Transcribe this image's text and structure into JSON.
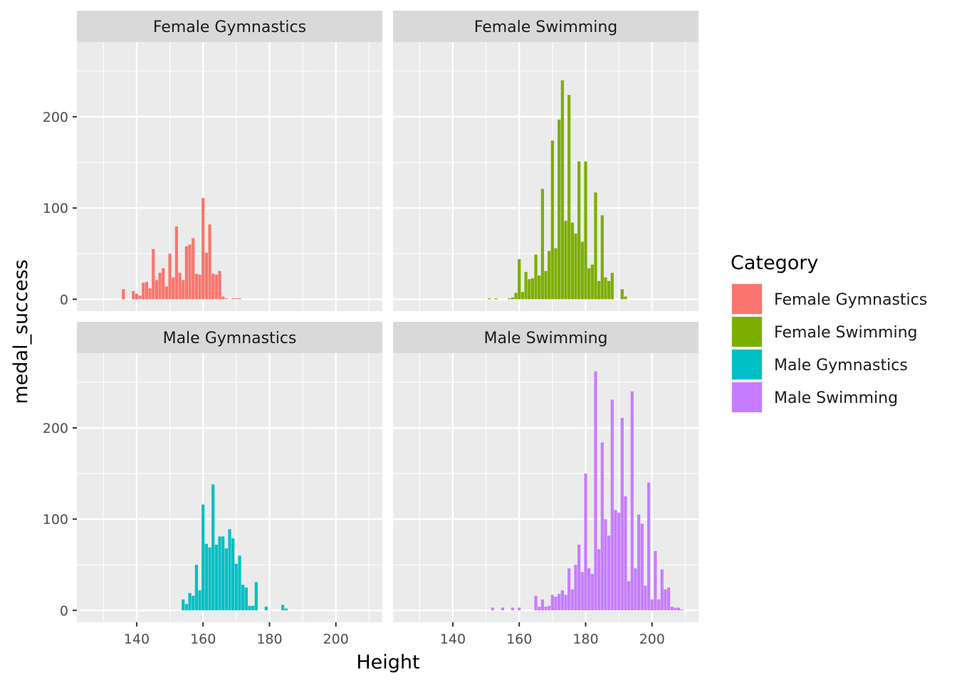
{
  "chart_data": {
    "type": "bar",
    "xlabel": "Height",
    "ylabel": "medal_success",
    "xlim": [
      122,
      214
    ],
    "ylim": [
      -13,
      282
    ],
    "x_ticks": [
      140,
      160,
      180,
      200
    ],
    "y_ticks": [
      0,
      100,
      200
    ],
    "x_tick_labels": [
      "140",
      "160",
      "180",
      "200"
    ],
    "y_tick_labels": [
      "0",
      "100",
      "200"
    ],
    "grid": true,
    "facets": [
      "Female Gymnastics",
      "Female Swimming",
      "Male Gymnastics",
      "Male Swimming"
    ],
    "legend": {
      "title": "Category",
      "position": "right",
      "entries": [
        {
          "label": "Female Gymnastics",
          "color": "#F8766D"
        },
        {
          "label": "Female Swimming",
          "color": "#7CAE00"
        },
        {
          "label": "Male Gymnastics",
          "color": "#00BFC4"
        },
        {
          "label": "Male Swimming",
          "color": "#C77CFF"
        }
      ]
    },
    "series": [
      {
        "name": "Female Gymnastics",
        "color": "#F8766D",
        "points": [
          [
            136,
            11
          ],
          [
            138,
            0
          ],
          [
            139,
            9
          ],
          [
            140,
            6
          ],
          [
            141,
            4
          ],
          [
            142,
            18
          ],
          [
            143,
            19
          ],
          [
            144,
            12
          ],
          [
            145,
            55
          ],
          [
            146,
            21
          ],
          [
            147,
            29
          ],
          [
            148,
            34
          ],
          [
            149,
            14
          ],
          [
            150,
            50
          ],
          [
            151,
            24
          ],
          [
            152,
            80
          ],
          [
            153,
            29
          ],
          [
            154,
            21
          ],
          [
            155,
            58
          ],
          [
            156,
            60
          ],
          [
            157,
            67
          ],
          [
            158,
            28
          ],
          [
            159,
            27
          ],
          [
            160,
            111
          ],
          [
            161,
            51
          ],
          [
            162,
            82
          ],
          [
            163,
            28
          ],
          [
            164,
            27
          ],
          [
            165,
            31
          ],
          [
            166,
            3
          ],
          [
            167,
            1
          ],
          [
            168,
            0
          ],
          [
            169,
            1
          ],
          [
            170,
            1
          ],
          [
            171,
            1
          ]
        ]
      },
      {
        "name": "Female Swimming",
        "color": "#7CAE00",
        "points": [
          [
            151,
            1
          ],
          [
            153,
            1
          ],
          [
            157,
            1
          ],
          [
            158,
            2
          ],
          [
            159,
            7
          ],
          [
            160,
            44
          ],
          [
            161,
            8
          ],
          [
            162,
            30
          ],
          [
            163,
            22
          ],
          [
            164,
            23
          ],
          [
            165,
            49
          ],
          [
            166,
            26
          ],
          [
            167,
            121
          ],
          [
            168,
            31
          ],
          [
            169,
            53
          ],
          [
            170,
            174
          ],
          [
            171,
            56
          ],
          [
            172,
            197
          ],
          [
            173,
            240
          ],
          [
            174,
            86
          ],
          [
            175,
            224
          ],
          [
            176,
            84
          ],
          [
            177,
            72
          ],
          [
            178,
            151
          ],
          [
            179,
            63
          ],
          [
            180,
            151
          ],
          [
            181,
            34
          ],
          [
            182,
            38
          ],
          [
            183,
            117
          ],
          [
            184,
            20
          ],
          [
            185,
            92
          ],
          [
            186,
            24
          ],
          [
            187,
            20
          ],
          [
            188,
            29
          ],
          [
            189,
            0
          ],
          [
            190,
            0
          ],
          [
            191,
            11
          ],
          [
            192,
            3
          ]
        ]
      },
      {
        "name": "Male Gymnastics",
        "color": "#00BFC4",
        "points": [
          [
            154,
            12
          ],
          [
            155,
            7
          ],
          [
            156,
            19
          ],
          [
            157,
            16
          ],
          [
            158,
            50
          ],
          [
            159,
            22
          ],
          [
            160,
            116
          ],
          [
            161,
            73
          ],
          [
            162,
            69
          ],
          [
            163,
            138
          ],
          [
            164,
            72
          ],
          [
            165,
            81
          ],
          [
            166,
            81
          ],
          [
            167,
            68
          ],
          [
            168,
            89
          ],
          [
            169,
            79
          ],
          [
            170,
            51
          ],
          [
            171,
            60
          ],
          [
            172,
            28
          ],
          [
            173,
            25
          ],
          [
            174,
            5
          ],
          [
            175,
            5
          ],
          [
            176,
            31
          ],
          [
            177,
            0
          ],
          [
            178,
            0
          ],
          [
            179,
            4
          ],
          [
            180,
            0
          ],
          [
            181,
            0
          ],
          [
            182,
            0
          ],
          [
            183,
            0
          ],
          [
            184,
            6
          ],
          [
            185,
            2
          ]
        ]
      },
      {
        "name": "Male Swimming",
        "color": "#C77CFF",
        "points": [
          [
            152,
            3
          ],
          [
            153,
            0
          ],
          [
            154,
            0
          ],
          [
            155,
            3
          ],
          [
            156,
            0
          ],
          [
            157,
            0
          ],
          [
            158,
            3
          ],
          [
            159,
            0
          ],
          [
            160,
            3
          ],
          [
            161,
            0
          ],
          [
            162,
            0
          ],
          [
            163,
            0
          ],
          [
            164,
            0
          ],
          [
            165,
            16
          ],
          [
            166,
            4
          ],
          [
            167,
            12
          ],
          [
            168,
            4
          ],
          [
            169,
            5
          ],
          [
            170,
            17
          ],
          [
            171,
            15
          ],
          [
            172,
            18
          ],
          [
            173,
            22
          ],
          [
            174,
            17
          ],
          [
            175,
            46
          ],
          [
            176,
            23
          ],
          [
            177,
            50
          ],
          [
            178,
            72
          ],
          [
            179,
            42
          ],
          [
            180,
            150
          ],
          [
            181,
            46
          ],
          [
            182,
            40
          ],
          [
            183,
            262
          ],
          [
            184,
            67
          ],
          [
            185,
            184
          ],
          [
            186,
            100
          ],
          [
            187,
            82
          ],
          [
            188,
            231
          ],
          [
            189,
            110
          ],
          [
            190,
            107
          ],
          [
            191,
            211
          ],
          [
            192,
            125
          ],
          [
            193,
            32
          ],
          [
            194,
            240
          ],
          [
            195,
            46
          ],
          [
            196,
            105
          ],
          [
            197,
            95
          ],
          [
            198,
            27
          ],
          [
            199,
            140
          ],
          [
            200,
            12
          ],
          [
            201,
            65
          ],
          [
            202,
            12
          ],
          [
            203,
            45
          ],
          [
            204,
            23
          ],
          [
            205,
            25
          ],
          [
            206,
            4
          ],
          [
            207,
            3
          ],
          [
            208,
            3
          ],
          [
            209,
            1
          ]
        ]
      }
    ]
  }
}
